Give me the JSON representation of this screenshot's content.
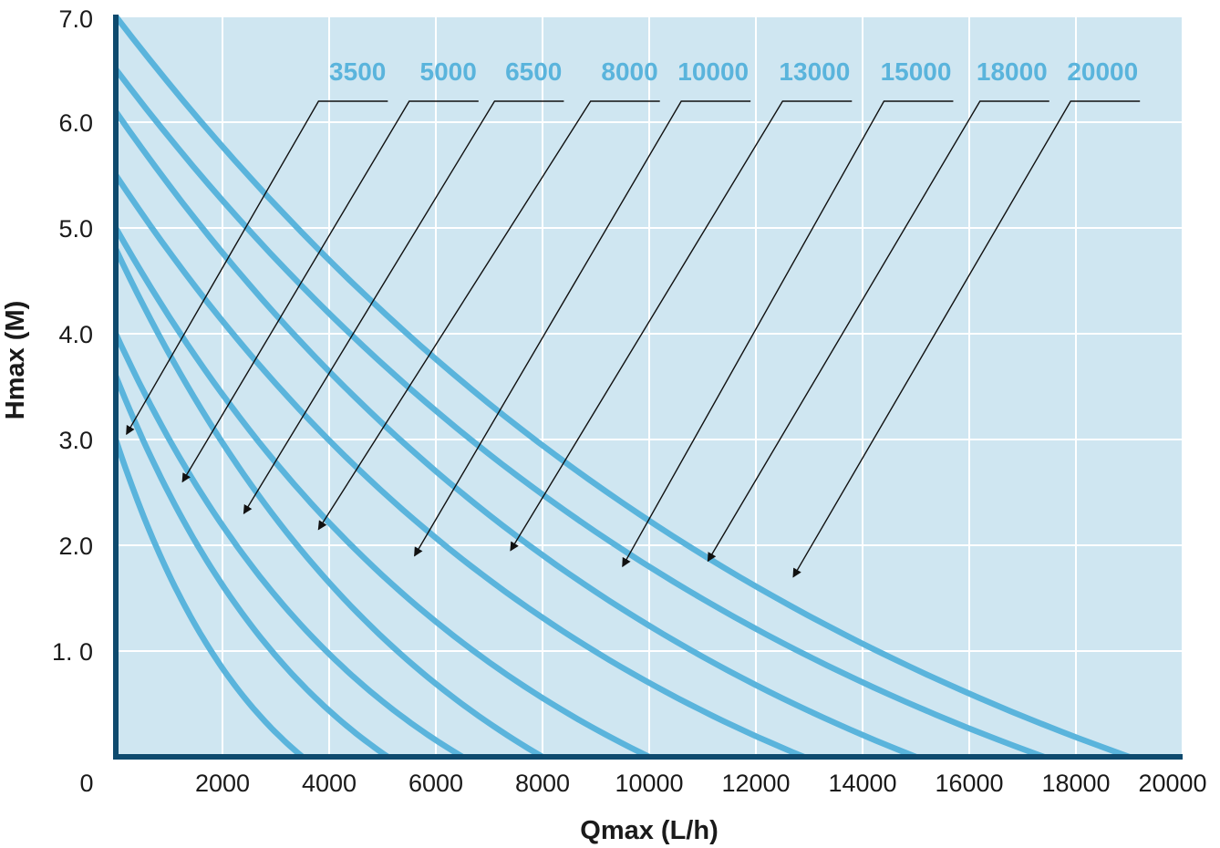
{
  "colors": {
    "plot_background": "#cfe6f1",
    "grid": "#ffffff",
    "axis": "#0e4a6e",
    "curve": "#5ab4dc",
    "label": "#5ab4dc",
    "leader": "#111111"
  },
  "chart_data": {
    "type": "line",
    "title": "",
    "xlabel": "Qmax (L/h)",
    "ylabel": "Hmax (M)",
    "xlim": [
      0,
      20000
    ],
    "ylim": [
      0,
      7
    ],
    "x_ticks": [
      "0",
      "2000",
      "4000",
      "6000",
      "8000",
      "10000",
      "12000",
      "14000",
      "16000",
      "18000",
      "20000"
    ],
    "x_tick_values": [
      0,
      2000,
      4000,
      6000,
      8000,
      10000,
      12000,
      14000,
      16000,
      18000,
      20000
    ],
    "y_ticks": [
      "1. 0",
      "2.0",
      "3.0",
      "4.0",
      "5.0",
      "6.0",
      "7.0"
    ],
    "y_tick_values": [
      1,
      2,
      3,
      4,
      5,
      6,
      7
    ],
    "grid": true,
    "legend": "labels along top with leader arrows",
    "series": [
      {
        "name": "3500",
        "hmax": 3.0,
        "qmax": 3500,
        "label_x": 5100,
        "arrow_to": [
          200,
          3.05
        ]
      },
      {
        "name": "5000",
        "hmax": 3.6,
        "qmax": 5100,
        "label_x": 6800,
        "arrow_to": [
          1250,
          2.6
        ]
      },
      {
        "name": "6500",
        "hmax": 4.0,
        "qmax": 6500,
        "label_x": 8400,
        "arrow_to": [
          2400,
          2.3
        ]
      },
      {
        "name": "8000",
        "hmax": 4.8,
        "qmax": 8000,
        "label_x": 10200,
        "arrow_to": [
          3800,
          2.15
        ]
      },
      {
        "name": "10000",
        "hmax": 5.0,
        "qmax": 10000,
        "label_x": 11900,
        "arrow_to": [
          5600,
          1.9
        ]
      },
      {
        "name": "13000",
        "hmax": 5.5,
        "qmax": 12900,
        "label_x": 13800,
        "arrow_to": [
          7400,
          1.95
        ]
      },
      {
        "name": "15000",
        "hmax": 6.1,
        "qmax": 15000,
        "label_x": 15700,
        "arrow_to": [
          9500,
          1.8
        ]
      },
      {
        "name": "18000",
        "hmax": 6.5,
        "qmax": 17400,
        "label_x": 17500,
        "arrow_to": [
          11100,
          1.85
        ]
      },
      {
        "name": "20000",
        "hmax": 7.0,
        "qmax": 19000,
        "label_x": 19200,
        "arrow_to": [
          12700,
          1.7
        ]
      }
    ]
  }
}
